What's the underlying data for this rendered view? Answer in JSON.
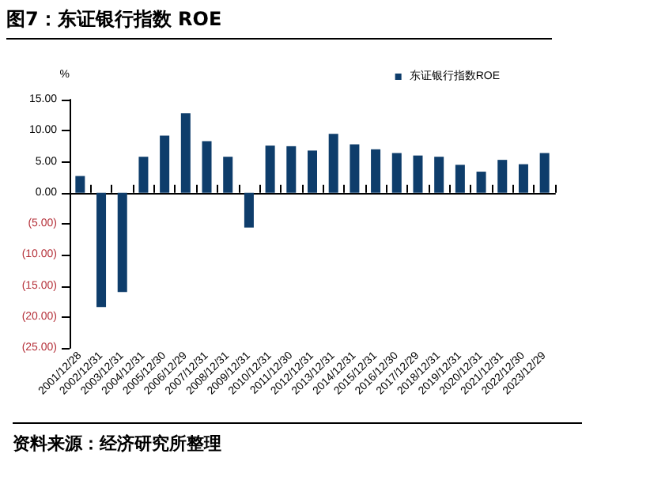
{
  "chart_data": {
    "type": "bar",
    "title": "图7：东证银行指数 ROE",
    "ylabel": "%",
    "categories": [
      "2001/12/28",
      "2002/12/31",
      "2003/12/31",
      "2004/12/31",
      "2005/12/30",
      "2006/12/29",
      "2007/12/31",
      "2008/12/31",
      "2009/12/31",
      "2010/12/31",
      "2011/12/30",
      "2012/12/31",
      "2013/12/31",
      "2014/12/31",
      "2015/12/31",
      "2016/12/30",
      "2017/12/29",
      "2018/12/31",
      "2019/12/31",
      "2020/12/31",
      "2021/12/31",
      "2022/12/30",
      "2023/12/29"
    ],
    "series": [
      {
        "name": "东证银行指数ROE",
        "color": "#0e3d6b",
        "values": [
          2.7,
          -18.4,
          -16.0,
          5.8,
          9.2,
          12.8,
          8.3,
          5.8,
          -5.6,
          7.6,
          7.5,
          6.8,
          9.5,
          7.8,
          7.0,
          6.4,
          6.0,
          5.8,
          4.5,
          3.4,
          5.3,
          4.6,
          6.4
        ]
      }
    ],
    "ylim": [
      -25,
      15
    ],
    "yticks": [
      {
        "value": -25,
        "label": "(25.00)"
      },
      {
        "value": -20,
        "label": "(20.00)"
      },
      {
        "value": -15,
        "label": "(15.00)"
      },
      {
        "value": -10,
        "label": "(10.00)"
      },
      {
        "value": -5,
        "label": "(5.00)"
      },
      {
        "value": 0,
        "label": "0.00"
      },
      {
        "value": 5,
        "label": "5.00"
      },
      {
        "value": 10,
        "label": "10.00"
      },
      {
        "value": 15,
        "label": "15.00"
      }
    ],
    "legend": "top right",
    "annotations": [
      "资料来源：经济研究所整理"
    ]
  }
}
